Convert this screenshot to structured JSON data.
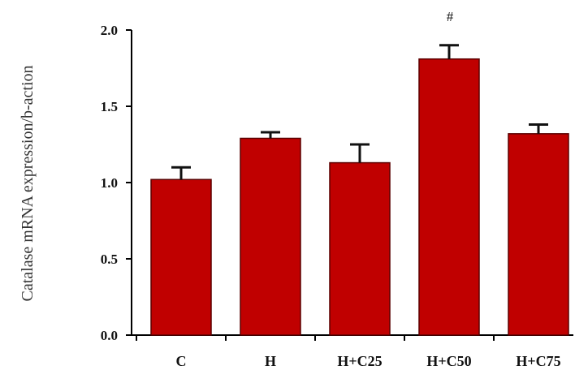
{
  "chart_data": {
    "type": "bar",
    "title": "",
    "xlabel": "",
    "ylabel": "Catalase mRNA expression/b-action",
    "categories": [
      "C",
      "H",
      "H+C25",
      "H+C50",
      "H+C75"
    ],
    "values": [
      1.02,
      1.29,
      1.13,
      1.81,
      1.32
    ],
    "errors": [
      0.08,
      0.04,
      0.12,
      0.09,
      0.06
    ],
    "annotations": [
      "",
      "",
      "",
      "#",
      ""
    ],
    "ylim": [
      0.0,
      2.0
    ],
    "yticks": [
      "0.0",
      "0.5",
      "1.0",
      "1.5",
      "2.0"
    ],
    "grid": false,
    "legend": "none",
    "colors": {
      "bar_fill": "#c00000",
      "bar_edge": "#5a0000",
      "axis": "#000000",
      "error_bar": "#111111"
    }
  }
}
